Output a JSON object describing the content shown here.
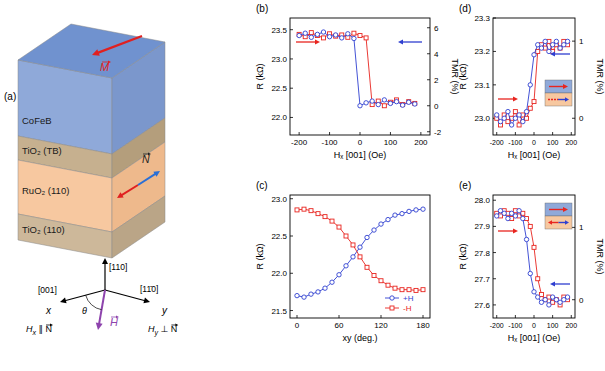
{
  "diagram": {
    "label": "(a)",
    "layers": [
      "CoFeB",
      "TiO₂ (TB)",
      "RuO₂ (110)",
      "TiO₂ (110)"
    ],
    "vectors": {
      "M": "M",
      "N": "N",
      "H": "H"
    },
    "axes": {
      "z": "[110]",
      "x_dir": "[001]",
      "y_dir": "[11̄0]",
      "x": "x",
      "y": "y",
      "angle": "θ",
      "hx": {
        "text": "H",
        "sub": "x",
        "after": " ∥ N"
      },
      "hy": {
        "text": "H",
        "sub": "y",
        "after": " ⊥ N"
      }
    }
  },
  "chart_data": [
    {
      "type": "line",
      "title": "(b)",
      "xlabel": "Hₓ [001] (Oe)",
      "ylabel": "R (kΩ)",
      "y2label": "TMR (%)",
      "x": [
        -200,
        -180,
        -160,
        -140,
        -120,
        -100,
        -80,
        -60,
        -40,
        -20,
        0,
        20,
        40,
        60,
        80,
        100,
        120,
        140,
        160,
        180
      ],
      "series": [
        {
          "color": "#e8251f",
          "marker": "square",
          "values": [
            23.42,
            23.38,
            23.45,
            23.4,
            23.36,
            23.43,
            23.39,
            23.41,
            23.37,
            23.44,
            23.4,
            23.36,
            22.22,
            22.28,
            22.2,
            22.26,
            22.3,
            22.22,
            22.27,
            22.24
          ]
        },
        {
          "color": "#2f3fd0",
          "marker": "circle",
          "values": [
            23.4,
            23.44,
            23.37,
            23.42,
            23.46,
            23.38,
            23.41,
            23.36,
            23.43,
            23.35,
            22.2,
            22.25,
            22.28,
            22.22,
            22.3,
            22.24,
            22.27,
            22.21,
            22.26,
            22.23
          ]
        }
      ],
      "xlim": [
        -230,
        230
      ],
      "xticks": [
        -200,
        -100,
        0,
        100,
        200
      ],
      "ylim": [
        21.7,
        23.7
      ],
      "yticks": [
        {
          "value": 22,
          "label": "22.0"
        },
        22.5,
        {
          "value": 23,
          "label": "23.0"
        },
        23.5
      ],
      "y2lim": [
        -2.25,
        6.75
      ],
      "y2ticks": [
        -2,
        0,
        2,
        4,
        6
      ]
    },
    {
      "type": "line",
      "title": "(c)",
      "xlabel": "xy (deg.)",
      "ylabel": "R (kΩ)",
      "x": [
        0,
        10,
        20,
        30,
        40,
        50,
        60,
        70,
        80,
        90,
        100,
        110,
        120,
        130,
        140,
        150,
        160,
        170,
        180
      ],
      "series": [
        {
          "name": "+H",
          "color": "#2f3fd0",
          "marker": "circle",
          "values": [
            21.7,
            21.68,
            21.72,
            21.75,
            21.8,
            21.88,
            21.98,
            22.1,
            22.22,
            22.35,
            22.48,
            22.58,
            22.66,
            22.72,
            22.78,
            22.8,
            22.83,
            22.85,
            22.86
          ]
        },
        {
          "name": "-H",
          "color": "#e8251f",
          "marker": "square",
          "values": [
            22.85,
            22.86,
            22.84,
            22.8,
            22.76,
            22.7,
            22.62,
            22.5,
            22.38,
            22.22,
            22.08,
            21.97,
            21.9,
            21.84,
            21.8,
            21.78,
            21.78,
            21.77,
            21.78
          ]
        }
      ],
      "xlim": [
        -10,
        190
      ],
      "xticks": [
        0,
        60,
        120,
        180
      ],
      "ylim": [
        21.4,
        23.05
      ],
      "yticks": [
        21.5,
        {
          "value": 22,
          "label": "22.0"
        },
        22.5,
        {
          "value": 23,
          "label": "23.0"
        }
      ],
      "legend": "lower right"
    },
    {
      "type": "line",
      "title": "(d)",
      "xlabel": "Hₓ [001] (Oe)",
      "ylabel": "R (kΩ)",
      "y2label": "TMR (%)",
      "x": [
        -200,
        -180,
        -160,
        -140,
        -120,
        -100,
        -80,
        -60,
        -40,
        -20,
        0,
        20,
        40,
        60,
        80,
        100,
        120,
        140,
        160,
        180
      ],
      "series": [
        {
          "color": "#e8251f",
          "marker": "square",
          "values": [
            23.0,
            22.98,
            23.01,
            22.99,
            23.0,
            23.02,
            22.98,
            23.01,
            23.0,
            23.03,
            23.05,
            23.2,
            23.22,
            23.21,
            23.23,
            23.2,
            23.22,
            23.21,
            23.23,
            23.22
          ]
        },
        {
          "color": "#2f3fd0",
          "marker": "circle",
          "values": [
            23.01,
            22.99,
            23.0,
            23.02,
            22.98,
            23.0,
            23.01,
            22.99,
            23.02,
            23.1,
            23.19,
            23.22,
            23.21,
            23.23,
            23.2,
            23.22,
            23.23,
            23.21,
            23.22,
            23.23
          ]
        }
      ],
      "xlim": [
        -220,
        220
      ],
      "xticks": [
        -200,
        -100,
        0,
        100,
        200
      ],
      "ylim": [
        22.95,
        23.3
      ],
      "yticks": [
        {
          "value": 23,
          "label": "23.0"
        },
        23.1,
        23.2,
        23.3
      ],
      "y2lim": [
        -0.217,
        1.3
      ],
      "y2ticks": [
        0,
        1
      ]
    },
    {
      "type": "line",
      "title": "(e)",
      "xlabel": "Hₓ [001] (Oe)",
      "ylabel": "R (kΩ)",
      "y2label": "TMR (%)",
      "x": [
        -200,
        -180,
        -160,
        -140,
        -120,
        -100,
        -80,
        -60,
        -40,
        -20,
        0,
        20,
        40,
        60,
        80,
        100,
        120,
        140,
        160,
        180
      ],
      "series": [
        {
          "color": "#e8251f",
          "marker": "square",
          "values": [
            27.95,
            27.94,
            27.96,
            27.95,
            27.93,
            27.96,
            27.94,
            27.95,
            27.93,
            27.9,
            27.82,
            27.7,
            27.64,
            27.62,
            27.63,
            27.61,
            27.62,
            27.6,
            27.63,
            27.62
          ]
        },
        {
          "color": "#2f3fd0",
          "marker": "circle",
          "values": [
            27.94,
            27.96,
            27.95,
            27.93,
            27.95,
            27.94,
            27.96,
            27.93,
            27.85,
            27.72,
            27.65,
            27.63,
            27.61,
            27.62,
            27.6,
            27.63,
            27.62,
            27.61,
            27.62,
            27.63
          ]
        }
      ],
      "xlim": [
        -220,
        220
      ],
      "xticks": [
        -200,
        -100,
        0,
        100,
        200
      ],
      "ylim": [
        27.55,
        28.02
      ],
      "yticks": [
        27.6,
        27.7,
        27.8,
        27.9,
        {
          "value": 28,
          "label": "28.0"
        }
      ],
      "y2lim": [
        -0.253,
        1.448
      ],
      "y2ticks": [
        0,
        1
      ]
    }
  ]
}
